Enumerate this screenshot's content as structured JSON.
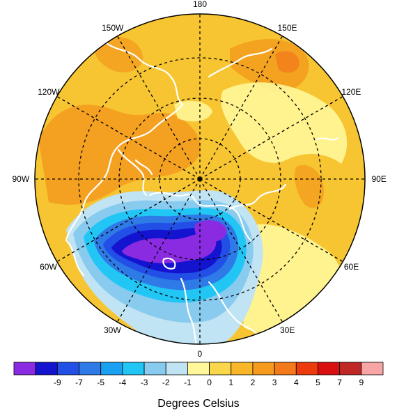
{
  "map": {
    "center_label": "",
    "longitude_labels": [
      {
        "text": "180",
        "lon": 180
      },
      {
        "text": "150E",
        "lon": 150
      },
      {
        "text": "120E",
        "lon": 120
      },
      {
        "text": "90E",
        "lon": 90
      },
      {
        "text": "60E",
        "lon": 60
      },
      {
        "text": "30E",
        "lon": 30
      },
      {
        "text": "0",
        "lon": 0
      },
      {
        "text": "30W",
        "lon": -30
      },
      {
        "text": "60W",
        "lon": -60
      },
      {
        "text": "90W",
        "lon": -90
      },
      {
        "text": "120W",
        "lon": -120
      },
      {
        "text": "150W",
        "lon": -150
      }
    ],
    "colors": {
      "background_warm": "#f7c531",
      "cold_core": "#8a2be2",
      "coastline": "#ffffff",
      "gridline": "#000000"
    }
  },
  "colorbar": {
    "colors": [
      "#8a2be2",
      "#1414d0",
      "#2250e6",
      "#2e7ae6",
      "#1aa0f0",
      "#22c6f5",
      "#88cbef",
      "#c0e4f4",
      "#fff79a",
      "#f9d64a",
      "#f8b628",
      "#f59a1c",
      "#f27a1a",
      "#ec3c0e",
      "#da1010",
      "#c02828",
      "#f7a5a5"
    ],
    "labels": [
      "-9",
      "-7",
      "-5",
      "-4",
      "-3",
      "-2",
      "-1",
      "0",
      "1",
      "2",
      "3",
      "4",
      "5",
      "7",
      "9"
    ]
  },
  "caption": "Degrees Celsius"
}
